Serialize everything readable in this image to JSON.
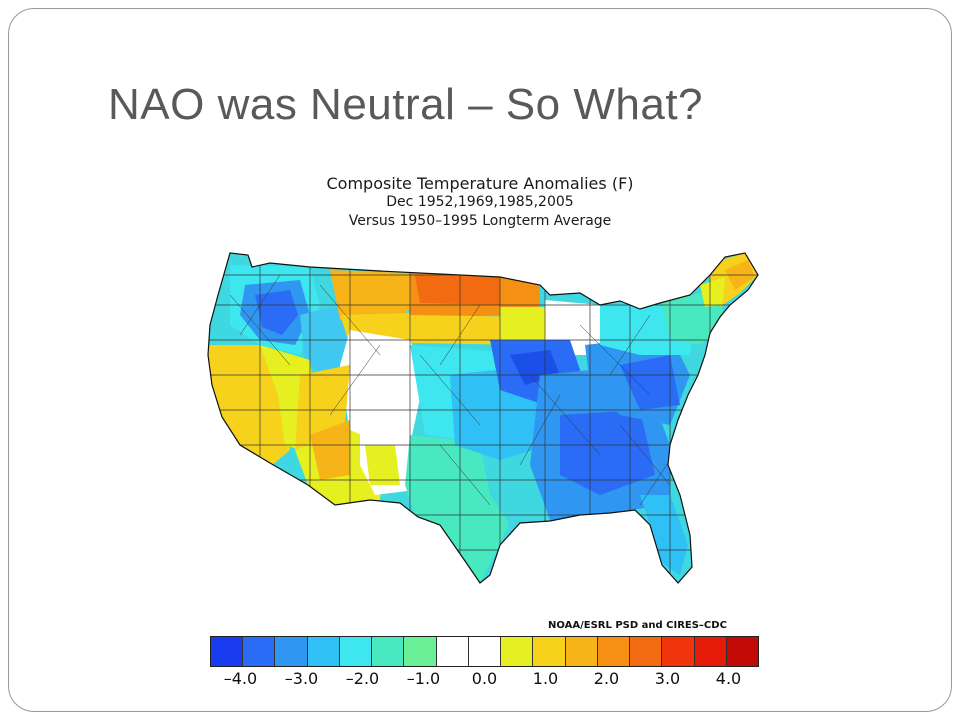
{
  "slide": {
    "title": "NAO was Neutral – So What?"
  },
  "map": {
    "title_line1": "Composite Temperature Anomalies (F)",
    "title_line2": "Dec   1952,1969,1985,2005",
    "title_line3": "Versus 1950–1995 Longterm Average",
    "credit": "NOAA/ESRL PSD and CIRES–CDC"
  },
  "legend": {
    "colors": [
      "#1a3cf0",
      "#2a6cf5",
      "#2f97f2",
      "#2fc0f5",
      "#3ee6f0",
      "#48e8c0",
      "#6af096",
      "#ffffff",
      "#ffffff",
      "#e6f020",
      "#f7d21c",
      "#f7b419",
      "#f59014",
      "#f26b10",
      "#f0340c",
      "#e61a08",
      "#c40a06"
    ],
    "tick_labels": [
      {
        "label": "–4.0",
        "value": -4.0
      },
      {
        "label": "–3.0",
        "value": -3.0
      },
      {
        "label": "–2.0",
        "value": -2.0
      },
      {
        "label": "–1.0",
        "value": -1.0
      },
      {
        "label": "0.0",
        "value": 0.0
      },
      {
        "label": "1.0",
        "value": 1.0
      },
      {
        "label": "2.0",
        "value": 2.0
      },
      {
        "label": "3.0",
        "value": 3.0
      },
      {
        "label": "4.0",
        "value": 4.0
      }
    ],
    "min": -4.5,
    "max": 4.5
  },
  "regions": [
    {
      "name": "pacific-northwest",
      "color": "#40d8e0",
      "anomaly": -1.5
    },
    {
      "name": "idaho-cold-core",
      "color": "#2a6cf5",
      "anomaly": -3.5
    },
    {
      "name": "montana-north",
      "color": "#f59014",
      "anomaly": 2.5
    },
    {
      "name": "north-dakota",
      "color": "#f26b10",
      "anomaly": 3.0
    },
    {
      "name": "california",
      "color": "#f7d21c",
      "anomaly": 1.5
    },
    {
      "name": "great-basin",
      "color": "#e6f020",
      "anomaly": 1.0
    },
    {
      "name": "southwest",
      "color": "#f7b419",
      "anomaly": 1.5
    },
    {
      "name": "texas",
      "color": "#48e8c0",
      "anomaly": -1.0
    },
    {
      "name": "central-plains",
      "color": "#2fc0f5",
      "anomaly": -2.0
    },
    {
      "name": "midwest",
      "color": "#2a6cf5",
      "anomaly": -3.0
    },
    {
      "name": "southeast",
      "color": "#2f97f2",
      "anomaly": -2.5
    },
    {
      "name": "northeast",
      "color": "#3ee6f0",
      "anomaly": -1.5
    },
    {
      "name": "maine",
      "color": "#f7d21c",
      "anomaly": 1.5
    }
  ]
}
